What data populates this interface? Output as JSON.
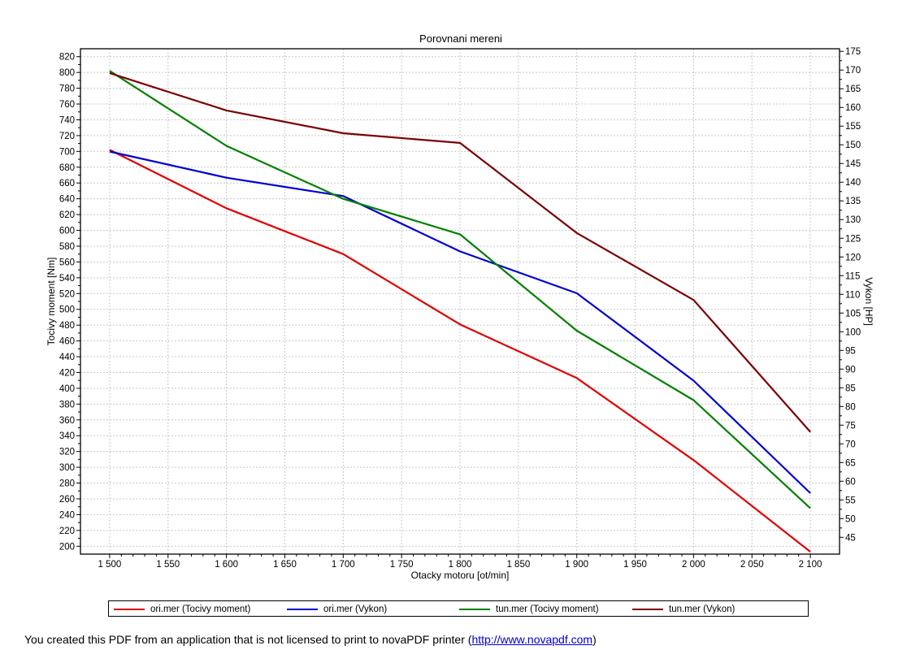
{
  "chart_data": {
    "type": "line",
    "title": "Porovnani mereni",
    "xlabel": "Otacky motoru [ot/min]",
    "ylabel": "Tocivy moment [Nm]",
    "y2label": "Vykon [HP]",
    "xlim": [
      1475,
      2125
    ],
    "ylim": [
      190,
      830
    ],
    "y2lim": [
      40.5,
      175.7
    ],
    "x_ticks": [
      1500,
      1550,
      1600,
      1650,
      1700,
      1750,
      1800,
      1850,
      1900,
      1950,
      2000,
      2050,
      2100
    ],
    "x_tick_labels": [
      "1 500",
      "1 550",
      "1 600",
      "1 650",
      "1 700",
      "1 750",
      "1 800",
      "1 850",
      "1 900",
      "1 950",
      "2 000",
      "2 050",
      "2 100"
    ],
    "y_ticks": [
      200,
      220,
      240,
      260,
      280,
      300,
      320,
      340,
      360,
      380,
      400,
      420,
      440,
      460,
      480,
      500,
      520,
      540,
      560,
      580,
      600,
      620,
      640,
      660,
      680,
      700,
      720,
      740,
      760,
      780,
      800,
      820
    ],
    "y2_ticks": [
      45,
      50,
      55,
      60,
      65,
      70,
      75,
      80,
      85,
      90,
      95,
      100,
      105,
      110,
      115,
      120,
      125,
      130,
      135,
      140,
      145,
      150,
      155,
      160,
      165,
      170,
      175
    ],
    "grid": true,
    "legend_position": "bottom",
    "x": [
      1500,
      1600,
      1700,
      1800,
      1900,
      2000,
      2100
    ],
    "series": [
      {
        "name": "ori.mer  (Tocivy moment)",
        "axis": "left",
        "color": "#e00000",
        "values": [
          702,
          628,
          570,
          481,
          413,
          309,
          193
        ]
      },
      {
        "name": "ori.mer  (Vykon)",
        "axis": "right",
        "color": "#0000d0",
        "values": [
          148.2,
          141.2,
          136.3,
          121.5,
          110.3,
          86.9,
          56.8
        ]
      },
      {
        "name": "tun.mer  (Tocivy moment)",
        "axis": "left",
        "color": "#008000",
        "values": [
          802,
          707,
          640,
          595,
          473,
          385,
          248
        ]
      },
      {
        "name": "tun.mer  (Vykon)",
        "axis": "right",
        "color": "#7a0000",
        "values": [
          169.2,
          159.2,
          153.1,
          150.5,
          126.4,
          108.5,
          73.2
        ]
      }
    ]
  },
  "footer": {
    "text": "You created this PDF from an application that is not licensed to print to novaPDF printer (",
    "link": "http://www.novapdf.com",
    "suffix": ")"
  }
}
